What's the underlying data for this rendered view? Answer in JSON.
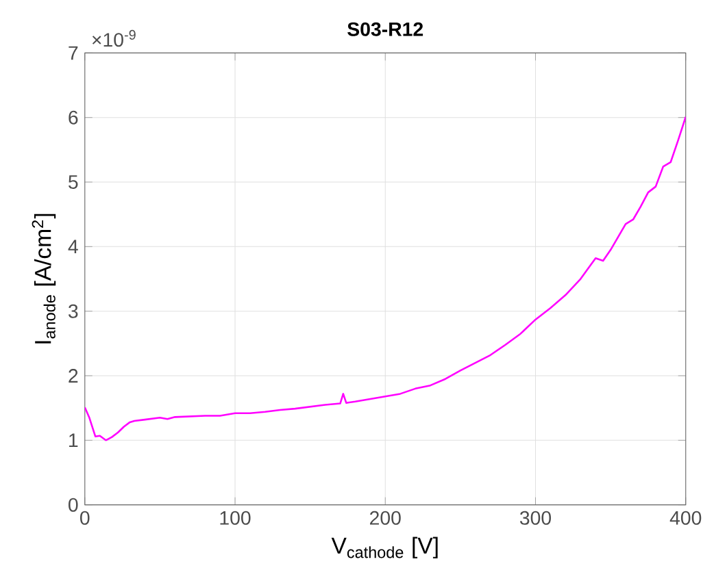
{
  "chart_data": {
    "type": "line",
    "title": "S03-R12",
    "xlabel": "V$_{cathode}$ [V]",
    "ylabel": "I$_{anode}$ [A/cm$^{2}$]",
    "annotations": [
      "×10$^{-9}$"
    ],
    "xlim": [
      0,
      400
    ],
    "ylim": [
      0,
      7
    ],
    "xticks": [
      0,
      100,
      200,
      300,
      400
    ],
    "yticks": [
      0,
      1,
      2,
      3,
      4,
      5,
      6,
      7
    ],
    "grid": true,
    "marker": "none",
    "line_style": "solid",
    "series": [
      {
        "color": "#ff00ff",
        "x": [
          0,
          3,
          7,
          10,
          14,
          18,
          22,
          26,
          30,
          33,
          40,
          50,
          55,
          60,
          70,
          80,
          90,
          100,
          110,
          120,
          130,
          140,
          150,
          160,
          170,
          172,
          174,
          180,
          190,
          200,
          210,
          220,
          230,
          240,
          250,
          260,
          270,
          280,
          290,
          300,
          310,
          320,
          330,
          340,
          345,
          350,
          360,
          365,
          370,
          375,
          380,
          385,
          390,
          395,
          400
        ],
        "values": [
          1.51,
          1.35,
          1.06,
          1.07,
          1.0,
          1.05,
          1.12,
          1.21,
          1.28,
          1.3,
          1.32,
          1.35,
          1.33,
          1.36,
          1.37,
          1.38,
          1.38,
          1.42,
          1.42,
          1.44,
          1.47,
          1.49,
          1.52,
          1.55,
          1.57,
          1.72,
          1.58,
          1.6,
          1.64,
          1.68,
          1.72,
          1.8,
          1.85,
          1.95,
          2.08,
          2.2,
          2.32,
          2.48,
          2.65,
          2.87,
          3.05,
          3.25,
          3.5,
          3.82,
          3.78,
          3.95,
          4.35,
          4.42,
          4.62,
          4.84,
          4.93,
          5.24,
          5.31,
          5.65,
          6.01
        ]
      }
    ]
  }
}
